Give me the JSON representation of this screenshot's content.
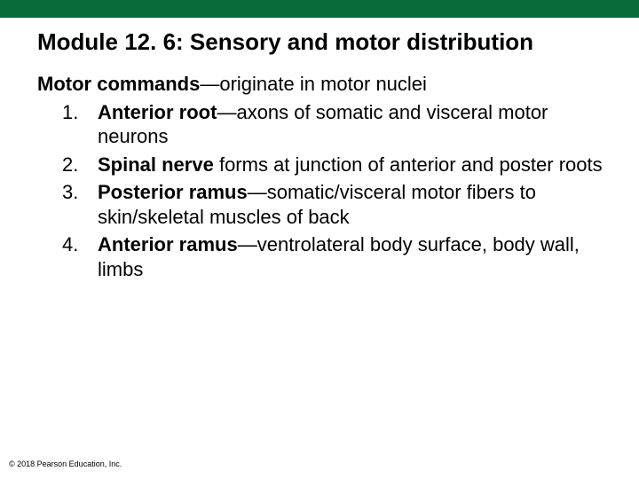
{
  "colors": {
    "bar": "#0a6b3a",
    "background": "#ffffff",
    "text": "#000000"
  },
  "typography": {
    "title_fontsize": 26,
    "body_fontsize": 22,
    "copyright_fontsize": 9,
    "font_family": "Arial"
  },
  "title": "Module 12. 6: Sensory and motor distribution",
  "intro_bold": "Motor commands",
  "intro_rest": "—originate in motor nuclei",
  "items": [
    {
      "num": "1.",
      "bold": "Anterior root",
      "rest": "—axons of somatic and visceral motor neurons"
    },
    {
      "num": "2.",
      "bold": "Spinal nerve",
      "rest": " forms at junction of anterior and poster roots"
    },
    {
      "num": "3.",
      "bold": "Posterior ramus",
      "rest": "—somatic/visceral motor fibers to skin/skeletal muscles of back"
    },
    {
      "num": "4.",
      "bold": "Anterior ramus",
      "rest": "—ventrolateral body surface, body wall, limbs"
    }
  ],
  "copyright": "© 2018 Pearson Education, Inc."
}
